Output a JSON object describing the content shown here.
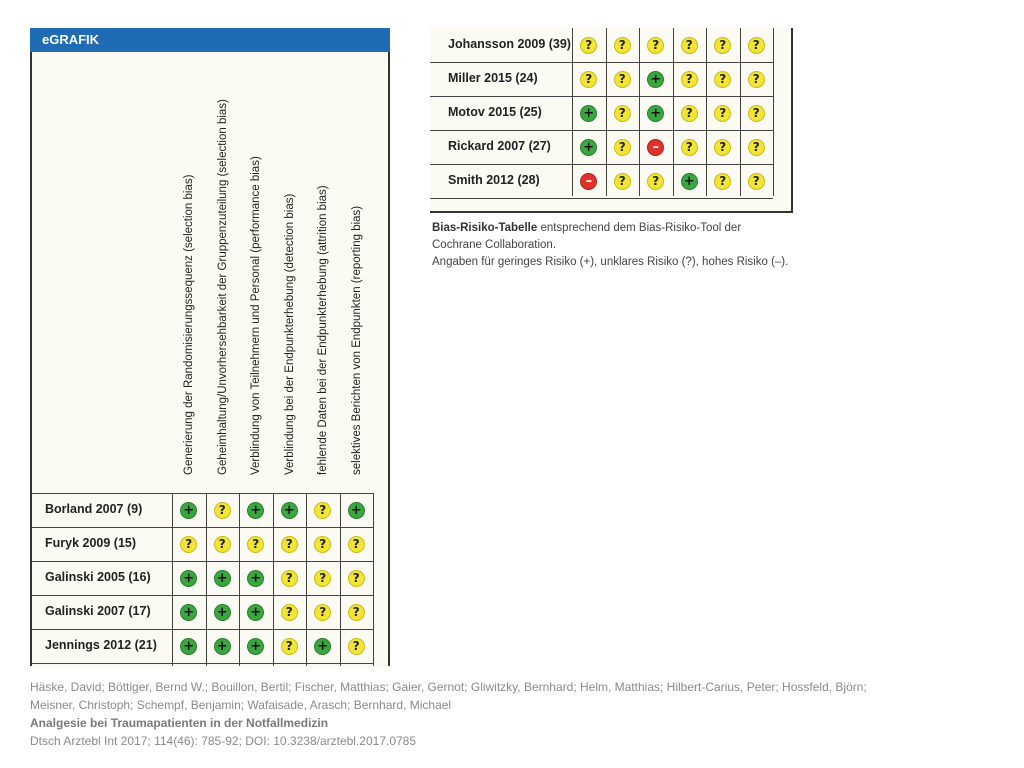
{
  "header": {
    "label": "eGRAFIK"
  },
  "columns": [
    "Generierung der Randomisierungssequenz (selection bias)",
    "Geheimhaltung/Unvorhersehbarkeit der Gruppenzuteilung (selection bias)",
    "Verblindung von Teilnehmern und Personal (performance bias)",
    "Verblindung bei der Endpunkterhebung (detection bias)",
    "fehlende Daten bei der Endpunkterhebung (attrition bias)",
    "selektives Berichten von Endpunkten (reporting bias)"
  ],
  "legend_symbols": {
    "plus": "+",
    "unclear": "?",
    "minus": "–"
  },
  "left_rows": [
    {
      "study": "Borland 2007 (9)",
      "ratings": [
        "plus",
        "unclear",
        "plus",
        "plus",
        "unclear",
        "plus"
      ]
    },
    {
      "study": "Furyk 2009 (15)",
      "ratings": [
        "unclear",
        "unclear",
        "unclear",
        "unclear",
        "unclear",
        "unclear"
      ]
    },
    {
      "study": "Galinski 2005 (16)",
      "ratings": [
        "plus",
        "plus",
        "plus",
        "unclear",
        "unclear",
        "unclear"
      ]
    },
    {
      "study": "Galinski 2007 (17)",
      "ratings": [
        "plus",
        "plus",
        "plus",
        "unclear",
        "unclear",
        "unclear"
      ]
    },
    {
      "study": "Jennings 2012 (21)",
      "ratings": [
        "plus",
        "plus",
        "plus",
        "unclear",
        "plus",
        "unclear"
      ]
    }
  ],
  "right_rows": [
    {
      "study": "Johansson 2009 (39)",
      "ratings": [
        "unclear",
        "unclear",
        "unclear",
        "unclear",
        "unclear",
        "unclear"
      ]
    },
    {
      "study": "Miller 2015 (24)",
      "ratings": [
        "unclear",
        "unclear",
        "plus",
        "unclear",
        "unclear",
        "unclear"
      ]
    },
    {
      "study": "Motov 2015 (25)",
      "ratings": [
        "plus",
        "unclear",
        "plus",
        "unclear",
        "unclear",
        "unclear"
      ]
    },
    {
      "study": "Rickard 2007 (27)",
      "ratings": [
        "plus",
        "unclear",
        "minus",
        "unclear",
        "unclear",
        "unclear"
      ]
    },
    {
      "study": "Smith 2012 (28)",
      "ratings": [
        "minus",
        "unclear",
        "unclear",
        "plus",
        "unclear",
        "unclear"
      ]
    }
  ],
  "caption": {
    "bold": "Bias-Risiko-Tabelle",
    "line1_rest": " entsprechend dem Bias-Risiko-Tool der",
    "line2": "Cochrane Collaboration.",
    "line3": "Angaben für geringes Risiko (+), unklares Risiko (?), hohes Risiko (–)."
  },
  "footer": {
    "authors_line1": "Häske, David; Böttiger, Bernd W.; Bouillon, Bertil; Fischer, Matthias; Gaier, Gernot; Gliwitzky, Bernhard; Helm, Matthias; Hilbert-Carius, Peter; Hossfeld, Björn;",
    "authors_line2": "Meisner, Christoph; Schempf, Benjamin; Wafaisade, Arasch; Bernhard, Michael",
    "title": "Analgesie bei Traumapatienten in der Notfallmedizin",
    "citation": "Dtsch Arztebl Int 2017; 114(46): 785-92; DOI: 10.3238/arztebl.2017.0785"
  },
  "colors": {
    "header_bg": "#1f6cb5",
    "plus": "#3aa640",
    "unclear": "#f2e534",
    "minus": "#e2312a",
    "panel_bg": "#fbfaf3"
  }
}
